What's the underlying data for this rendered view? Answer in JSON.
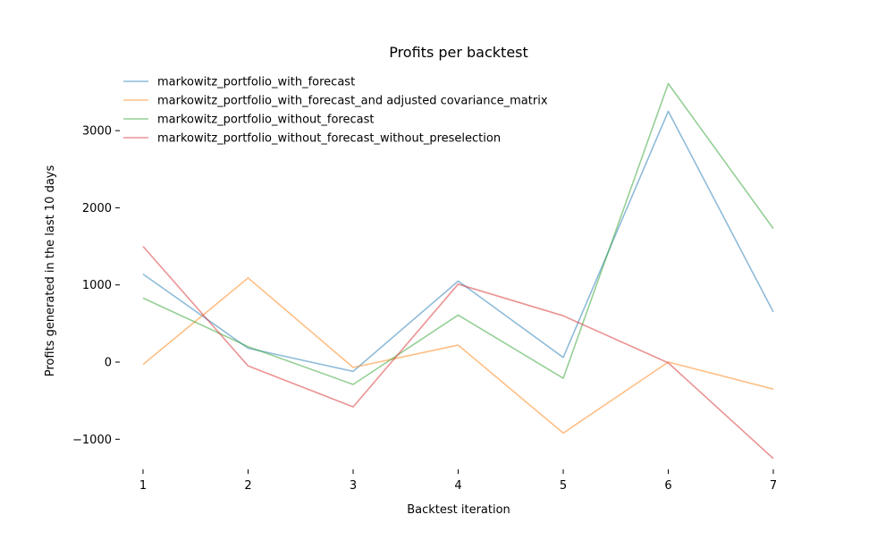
{
  "chart_data": {
    "type": "line",
    "title": "Profits per backtest",
    "xlabel": "Backtest iteration",
    "ylabel": "Profits generated in the last 10 days",
    "x": [
      1,
      2,
      3,
      4,
      5,
      6,
      7
    ],
    "xlim": [
      1,
      7
    ],
    "ylim": [
      -1000,
      3000
    ],
    "yticks": [
      -1000,
      0,
      1000,
      2000,
      3000
    ],
    "y_tick_labels": [
      "−1000",
      "0",
      "1000",
      "2000",
      "3000"
    ],
    "grid": false,
    "legend_position": "top-left",
    "series": [
      {
        "name": "markowitz_portfolio_with_forecast",
        "color": "#1f77b4",
        "values": [
          1140,
          180,
          -120,
          1050,
          60,
          3250,
          650
        ]
      },
      {
        "name": "markowitz_portfolio_with_forecast_and adjusted covariance_matrix",
        "color": "#ff7f0e",
        "values": [
          -30,
          1090,
          -70,
          220,
          -920,
          0,
          -350
        ]
      },
      {
        "name": "markowitz_portfolio_without_forecast",
        "color": "#2ca02c",
        "values": [
          830,
          200,
          -290,
          610,
          -210,
          3610,
          1730
        ]
      },
      {
        "name": "markowitz_portfolio_without_forecast_without_preselection",
        "color": "#d62728",
        "values": [
          1500,
          -50,
          -580,
          1010,
          600,
          -10,
          -1250
        ]
      }
    ]
  }
}
